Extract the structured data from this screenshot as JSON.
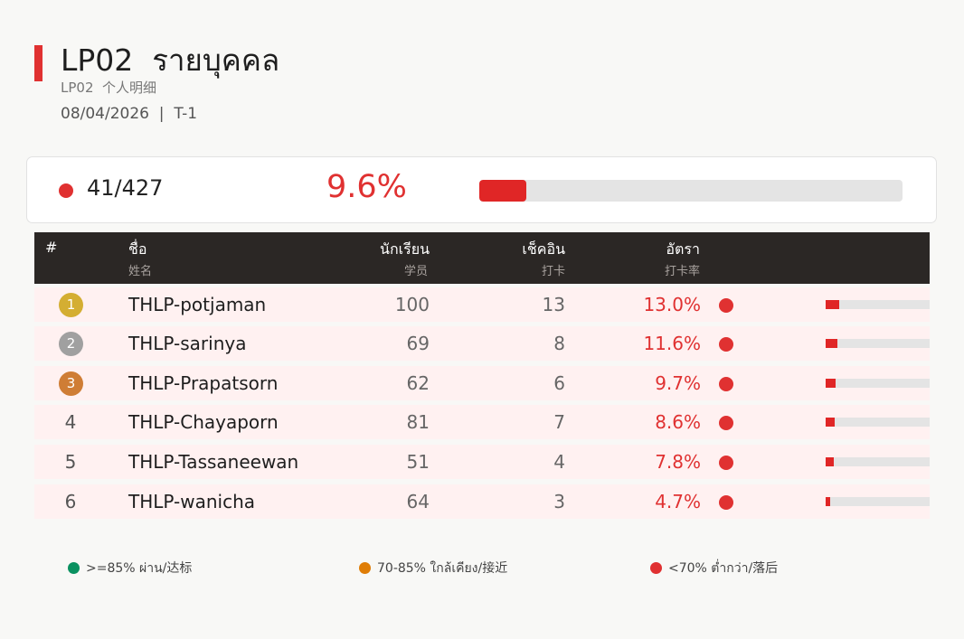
{
  "header": {
    "title": "LP02  รายบุคคล",
    "subtitle": "LP02  个人明细",
    "date_line": "08/04/2026  |  T-1"
  },
  "summary": {
    "count": "41/427",
    "rate": "9.6%",
    "progress_percent": 9.6,
    "status_color": "#e03131"
  },
  "table": {
    "columns": [
      {
        "label": "#",
        "sub": ""
      },
      {
        "label": "ชื่อ",
        "sub": "姓名"
      },
      {
        "label": "นักเรียน",
        "sub": "学员"
      },
      {
        "label": "เช็คอิน",
        "sub": "打卡"
      },
      {
        "label": "อัตรา",
        "sub": "打卡率"
      }
    ],
    "rows": [
      {
        "rank": "1",
        "name": "THLP-potjaman",
        "students": "100",
        "checkins": "13",
        "rate": "13.0%",
        "rate_value": 13.0,
        "badge_color": "#d4ae32"
      },
      {
        "rank": "2",
        "name": "THLP-sarinya",
        "students": "69",
        "checkins": "8",
        "rate": "11.6%",
        "rate_value": 11.6,
        "badge_color": "#a0a0a0"
      },
      {
        "rank": "3",
        "name": "THLP-Prapatsorn",
        "students": "62",
        "checkins": "6",
        "rate": "9.7%",
        "rate_value": 9.7,
        "badge_color": "#cf7d35"
      },
      {
        "rank": "4",
        "name": "THLP-Chayaporn",
        "students": "81",
        "checkins": "7",
        "rate": "8.6%",
        "rate_value": 8.6
      },
      {
        "rank": "5",
        "name": "THLP-Tassaneewan",
        "students": "51",
        "checkins": "4",
        "rate": "7.8%",
        "rate_value": 7.8
      },
      {
        "rank": "6",
        "name": "THLP-wanicha",
        "students": "64",
        "checkins": "3",
        "rate": "4.7%",
        "rate_value": 4.7
      }
    ]
  },
  "legend": [
    {
      "label": ">=85% ผ่าน/达标",
      "color": "#0a9160"
    },
    {
      "label": "70-85% ใกล้เคียง/接近",
      "color": "#df7d06"
    },
    {
      "label": "<70% ต่ำกว่า/落后",
      "color": "#e03131"
    }
  ]
}
